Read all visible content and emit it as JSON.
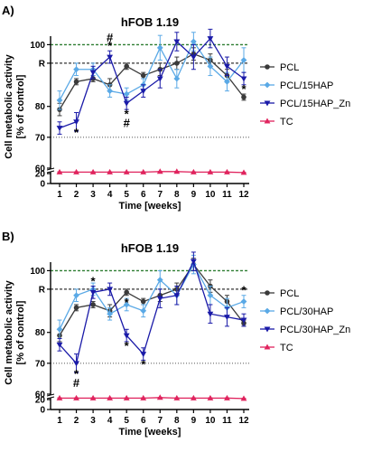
{
  "chart_data": [
    {
      "panel": "A)",
      "type": "line",
      "title": "hFOB 1.19",
      "xlabel": "Time [weeks]",
      "ylabel_lines": [
        "Cell metabolic activity",
        "[% of control]"
      ],
      "x": [
        1,
        2,
        3,
        4,
        5,
        6,
        7,
        8,
        9,
        10,
        11,
        12
      ],
      "y_ticks": [
        "0",
        "20",
        "60",
        "70",
        "80",
        "R",
        "100"
      ],
      "ref_lines": {
        "upper": 100,
        "R": 94,
        "lower": 70
      },
      "colors": {
        "PCL": "#3a3a3a",
        "PCL/15HAP": "#5aa9e6",
        "PCL/15HAP_Zn": "#1a1aa8",
        "TC": "#e0245e",
        "upper": "#2e7d32",
        "R": "#333333",
        "lower": "#555555"
      },
      "series": [
        {
          "name": "PCL",
          "values": [
            79,
            88,
            89,
            87,
            93,
            90,
            92,
            94,
            97,
            95,
            90,
            83
          ],
          "errors": [
            2,
            1,
            1,
            2,
            1,
            1,
            2,
            2,
            2,
            2,
            2,
            1
          ]
        },
        {
          "name": "PCL/15HAP",
          "values": [
            82,
            92,
            92,
            85,
            84,
            87,
            99,
            89,
            101,
            93,
            88,
            95
          ],
          "errors": [
            3,
            2,
            2,
            2,
            2,
            2,
            4,
            3,
            3,
            3,
            3,
            4
          ]
        },
        {
          "name": "PCL/15HAP_Zn",
          "values": [
            73,
            75,
            91,
            96,
            81,
            85,
            89,
            101,
            96,
            102,
            93,
            89
          ],
          "errors": [
            2,
            3,
            2,
            2,
            2,
            2,
            3,
            3,
            4,
            3,
            3,
            2
          ]
        },
        {
          "name": "TC",
          "values": [
            23,
            23,
            23,
            23,
            23,
            23,
            24,
            24,
            23,
            23,
            23,
            22
          ],
          "errors": [
            0.5,
            0.5,
            0.5,
            0.5,
            0.5,
            0.5,
            0.5,
            0.5,
            0.5,
            0.5,
            0.5,
            0.5
          ]
        }
      ],
      "annotations": [
        {
          "x": 2,
          "y": 75,
          "text": "*",
          "pos": "below"
        },
        {
          "x": 4,
          "y": 96,
          "text": "*",
          "pos": "above1"
        },
        {
          "x": 4,
          "y": 96,
          "text": "#",
          "pos": "above2"
        },
        {
          "x": 5,
          "y": 81,
          "text": "*",
          "pos": "below"
        },
        {
          "x": 5,
          "y": 81,
          "text": "#",
          "pos": "below2"
        },
        {
          "x": 12,
          "y": 89,
          "text": "*",
          "pos": "below"
        }
      ]
    },
    {
      "panel": "B)",
      "type": "line",
      "title": "hFOB 1.19",
      "xlabel": "Time [weeks]",
      "ylabel_lines": [
        "Cell metabolic activity",
        "[% of control]"
      ],
      "x": [
        1,
        2,
        3,
        4,
        5,
        6,
        7,
        8,
        9,
        10,
        11,
        12
      ],
      "y_ticks": [
        "0",
        "20",
        "60",
        "70",
        "80",
        "R",
        "100"
      ],
      "ref_lines": {
        "upper": 100,
        "R": 94,
        "lower": 70
      },
      "colors": {
        "PCL": "#3a3a3a",
        "PCL/30HAP": "#5aa9e6",
        "PCL/30HAP_Zn": "#1a1aa8",
        "TC": "#e0245e",
        "upper": "#2e7d32",
        "R": "#333333",
        "lower": "#555555"
      },
      "series": [
        {
          "name": "PCL",
          "values": [
            79,
            88,
            89,
            87,
            93,
            90,
            92,
            94,
            102,
            95,
            90,
            83
          ],
          "errors": [
            2,
            1,
            1,
            2,
            1,
            1,
            2,
            2,
            2,
            2,
            2,
            1
          ]
        },
        {
          "name": "PCL/30HAP",
          "values": [
            81,
            92,
            94,
            86,
            89,
            87,
            97,
            92,
            102,
            92,
            88,
            90
          ],
          "errors": [
            3,
            2,
            2,
            2,
            2,
            2,
            3,
            3,
            3,
            3,
            3,
            2
          ]
        },
        {
          "name": "PCL/30HAP_Zn",
          "values": [
            76,
            70,
            93,
            94,
            79,
            73,
            91,
            92,
            103,
            86,
            85,
            84
          ],
          "errors": [
            2,
            3,
            2,
            2,
            2,
            2,
            3,
            3,
            3,
            3,
            3,
            2
          ]
        },
        {
          "name": "TC",
          "values": [
            23,
            23,
            23,
            23,
            23,
            23,
            24,
            23,
            23,
            23,
            23,
            22
          ],
          "errors": [
            0.5,
            0.5,
            0.5,
            0.5,
            0.5,
            0.5,
            0.5,
            0.5,
            0.5,
            0.5,
            0.5,
            0.5
          ]
        }
      ],
      "annotations": [
        {
          "x": 2,
          "y": 70,
          "text": "*",
          "pos": "below"
        },
        {
          "x": 2,
          "y": 70,
          "text": "#",
          "pos": "below2"
        },
        {
          "x": 3,
          "y": 93,
          "text": "*",
          "pos": "above1"
        },
        {
          "x": 5,
          "y": 86,
          "text": "*",
          "pos": "above1"
        },
        {
          "x": 5,
          "y": 79,
          "text": "*",
          "pos": "below"
        },
        {
          "x": 6,
          "y": 73,
          "text": "*",
          "pos": "below"
        },
        {
          "x": 12,
          "y": 90,
          "text": "*",
          "pos": "above1"
        }
      ]
    }
  ]
}
